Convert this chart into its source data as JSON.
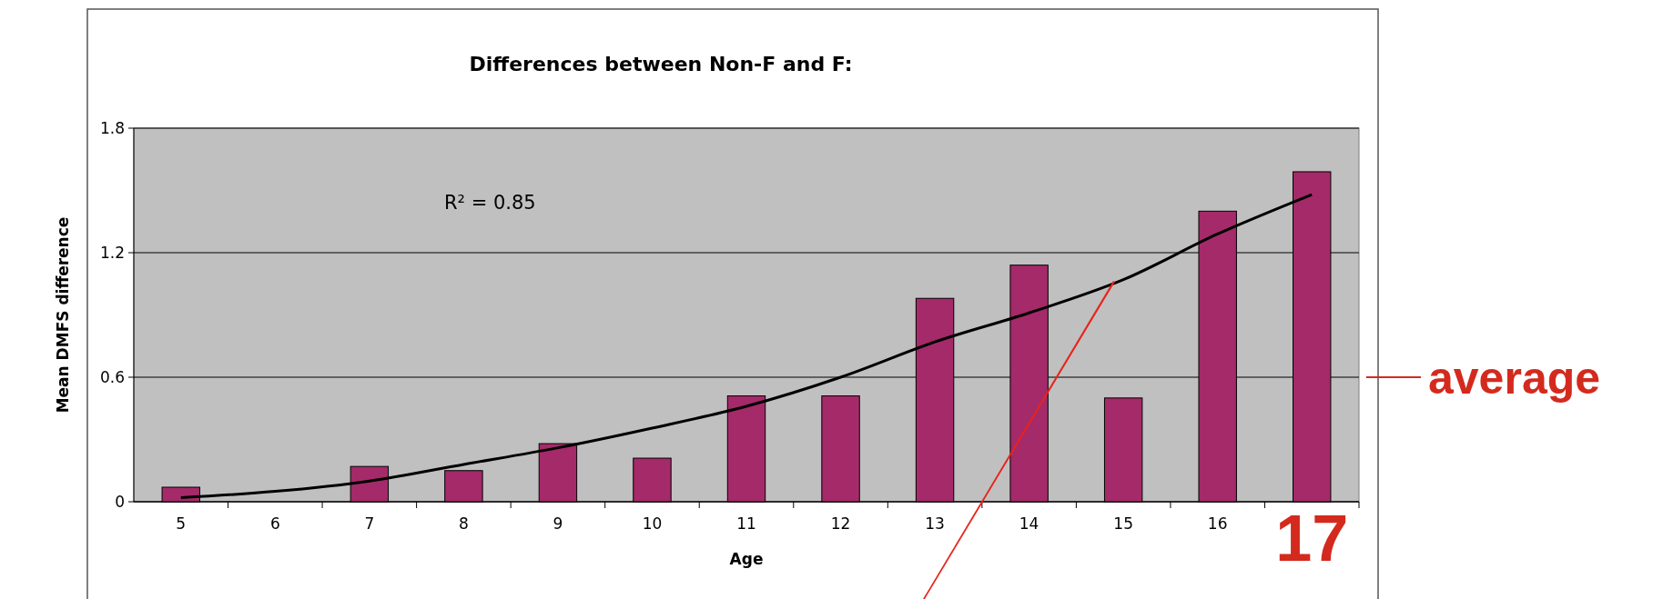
{
  "chart_data": {
    "type": "bar",
    "title": "Differences between Non-F and F:",
    "xlabel": "Age",
    "ylabel": "Mean DMFS difference",
    "categories": [
      "5",
      "6",
      "7",
      "8",
      "9",
      "10",
      "11",
      "12",
      "13",
      "14",
      "15",
      "16",
      "17"
    ],
    "series": [
      {
        "color": "#a52a69",
        "values": [
          0.07,
          0,
          0.17,
          0.15,
          0.28,
          0.21,
          0.51,
          0.51,
          0.98,
          1.14,
          0.5,
          1.4,
          1.59
        ]
      },
      {
        "type": "line",
        "color": "#000000",
        "values": [
          0.02,
          0.05,
          0.1,
          0.18,
          0.26,
          0.355,
          0.46,
          0.6,
          0.77,
          0.91,
          1.07,
          1.29,
          1.48
        ]
      }
    ],
    "ylim": [
      0,
      1.8
    ],
    "yticks": [
      0,
      0.6,
      1.2,
      1.8
    ],
    "grid": "y",
    "ref_lines": [
      {
        "axis": "y",
        "value": 0.6,
        "label": "average",
        "color": "#d42a1e"
      }
    ],
    "annotations": [
      "R² = 0.85"
    ]
  }
}
